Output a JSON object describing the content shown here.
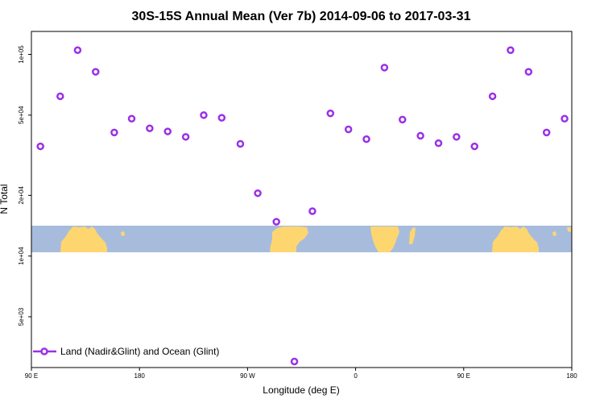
{
  "chart_data": {
    "type": "scatter",
    "title": "30S-15S Annual Mean (Ver 7b)   2014-09-06 to 2017-03-31",
    "xlabel": "Longitude (deg E)",
    "ylabel": "N Total",
    "yscale": "log",
    "xlim": [
      90,
      540
    ],
    "ylim": [
      2800,
      130000
    ],
    "x_ticks": [
      {
        "value": 90,
        "label": "90 E"
      },
      {
        "value": 180,
        "label": "180"
      },
      {
        "value": 270,
        "label": "90 W"
      },
      {
        "value": 360,
        "label": "0"
      },
      {
        "value": 450,
        "label": "90 E"
      },
      {
        "value": 540,
        "label": "180"
      }
    ],
    "y_ticks": [
      {
        "value": 5000,
        "label": "5e+03"
      },
      {
        "value": 10000,
        "label": "1e+04"
      },
      {
        "value": 20000,
        "label": "2e+04"
      },
      {
        "value": 50000,
        "label": "5e+04"
      },
      {
        "value": 100000,
        "label": "1e+05"
      }
    ],
    "series": [
      {
        "name": "Land (Nadir&Glint) and Ocean (Glint)",
        "color": "#9B30E6",
        "x": [
          97.5,
          114,
          128.5,
          143.5,
          159,
          173.5,
          188.5,
          203.5,
          218.5,
          233.5,
          248.5,
          264,
          278.5,
          294,
          309,
          324,
          339,
          354,
          369,
          384,
          399,
          414,
          429,
          444,
          459,
          474,
          489,
          504,
          519,
          534
        ],
        "y": [
          35000,
          62000,
          105000,
          82000,
          41000,
          48000,
          43000,
          41500,
          39000,
          50000,
          48500,
          36000,
          20500,
          14800,
          3000,
          16700,
          51000,
          42500,
          38000,
          86000,
          47500,
          39500,
          36300,
          39000,
          35000,
          62000,
          105000,
          82000,
          41000,
          48000
        ]
      }
    ],
    "legend": {
      "label": "Land (Nadir&Glint) and Ocean (Glint)",
      "location": "bottom-left"
    },
    "map_strip": {
      "ocean_color": "#A7BCDC",
      "land_color": "#FDD670"
    }
  }
}
